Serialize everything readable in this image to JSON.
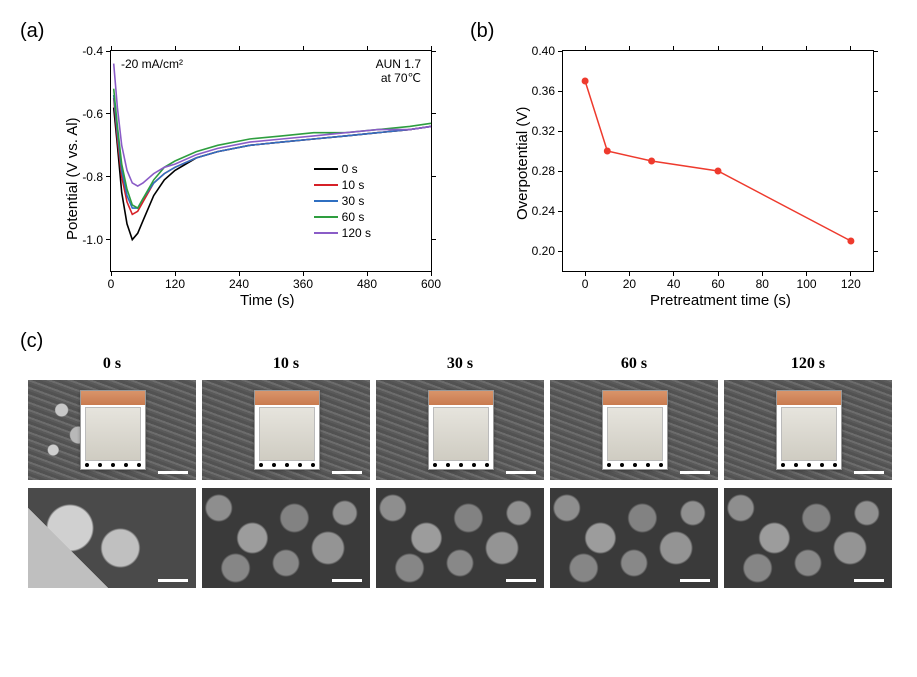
{
  "panel_a": {
    "label": "(a)",
    "type": "line",
    "xlabel": "Time (s)",
    "ylabel": "Potential (V vs. Al)",
    "xlim": [
      0,
      600
    ],
    "ylim": [
      -1.1,
      -0.4
    ],
    "xticks": [
      0,
      120,
      240,
      360,
      480,
      600
    ],
    "yticks": [
      -1.0,
      -0.8,
      -0.6,
      -0.4
    ],
    "annotations": {
      "current": "-20 mA/cm²",
      "cond1": "AUN 1.7",
      "cond2": "at 70℃"
    },
    "background_color": "#ffffff",
    "series": [
      {
        "name": "0 s",
        "color": "#000000",
        "points": [
          [
            5,
            -0.58
          ],
          [
            12,
            -0.7
          ],
          [
            20,
            -0.85
          ],
          [
            30,
            -0.95
          ],
          [
            40,
            -1.0
          ],
          [
            50,
            -0.98
          ],
          [
            60,
            -0.94
          ],
          [
            80,
            -0.86
          ],
          [
            100,
            -0.81
          ],
          [
            120,
            -0.78
          ],
          [
            160,
            -0.74
          ],
          [
            200,
            -0.72
          ],
          [
            260,
            -0.7
          ],
          [
            320,
            -0.69
          ],
          [
            380,
            -0.68
          ],
          [
            440,
            -0.67
          ],
          [
            500,
            -0.66
          ],
          [
            560,
            -0.65
          ],
          [
            600,
            -0.64
          ]
        ]
      },
      {
        "name": "10 s",
        "color": "#d62027",
        "points": [
          [
            5,
            -0.55
          ],
          [
            12,
            -0.68
          ],
          [
            20,
            -0.8
          ],
          [
            30,
            -0.88
          ],
          [
            40,
            -0.92
          ],
          [
            50,
            -0.91
          ],
          [
            60,
            -0.88
          ],
          [
            80,
            -0.82
          ],
          [
            100,
            -0.79
          ],
          [
            120,
            -0.77
          ],
          [
            160,
            -0.74
          ],
          [
            200,
            -0.72
          ],
          [
            260,
            -0.7
          ],
          [
            320,
            -0.69
          ],
          [
            380,
            -0.68
          ],
          [
            440,
            -0.67
          ],
          [
            500,
            -0.66
          ],
          [
            560,
            -0.65
          ],
          [
            600,
            -0.64
          ]
        ]
      },
      {
        "name": "30 s",
        "color": "#2f6fc1",
        "points": [
          [
            5,
            -0.54
          ],
          [
            12,
            -0.66
          ],
          [
            20,
            -0.78
          ],
          [
            30,
            -0.86
          ],
          [
            40,
            -0.9
          ],
          [
            50,
            -0.9
          ],
          [
            60,
            -0.87
          ],
          [
            80,
            -0.82
          ],
          [
            100,
            -0.79
          ],
          [
            120,
            -0.77
          ],
          [
            160,
            -0.74
          ],
          [
            200,
            -0.72
          ],
          [
            260,
            -0.7
          ],
          [
            320,
            -0.69
          ],
          [
            380,
            -0.68
          ],
          [
            440,
            -0.67
          ],
          [
            500,
            -0.66
          ],
          [
            560,
            -0.65
          ],
          [
            600,
            -0.64
          ]
        ]
      },
      {
        "name": "60 s",
        "color": "#2e9e3f",
        "points": [
          [
            5,
            -0.52
          ],
          [
            12,
            -0.64
          ],
          [
            20,
            -0.76
          ],
          [
            30,
            -0.84
          ],
          [
            40,
            -0.89
          ],
          [
            50,
            -0.9
          ],
          [
            60,
            -0.87
          ],
          [
            80,
            -0.81
          ],
          [
            100,
            -0.77
          ],
          [
            120,
            -0.75
          ],
          [
            160,
            -0.72
          ],
          [
            200,
            -0.7
          ],
          [
            260,
            -0.68
          ],
          [
            320,
            -0.67
          ],
          [
            380,
            -0.66
          ],
          [
            440,
            -0.66
          ],
          [
            500,
            -0.65
          ],
          [
            560,
            -0.64
          ],
          [
            600,
            -0.63
          ]
        ]
      },
      {
        "name": "120 s",
        "color": "#8a5cc7",
        "points": [
          [
            5,
            -0.44
          ],
          [
            12,
            -0.58
          ],
          [
            20,
            -0.7
          ],
          [
            30,
            -0.78
          ],
          [
            40,
            -0.82
          ],
          [
            50,
            -0.83
          ],
          [
            60,
            -0.82
          ],
          [
            80,
            -0.79
          ],
          [
            100,
            -0.77
          ],
          [
            120,
            -0.76
          ],
          [
            160,
            -0.73
          ],
          [
            200,
            -0.71
          ],
          [
            260,
            -0.69
          ],
          [
            320,
            -0.68
          ],
          [
            380,
            -0.67
          ],
          [
            440,
            -0.66
          ],
          [
            500,
            -0.65
          ],
          [
            560,
            -0.65
          ],
          [
            600,
            -0.64
          ]
        ]
      }
    ]
  },
  "panel_b": {
    "label": "(b)",
    "type": "line-scatter",
    "xlabel": "Pretreatment time (s)",
    "ylabel": "Overpotential (V)",
    "xlim": [
      -10,
      130
    ],
    "ylim": [
      0.18,
      0.4
    ],
    "xticks": [
      0,
      20,
      40,
      60,
      80,
      100,
      120
    ],
    "yticks": [
      0.2,
      0.24,
      0.28,
      0.32,
      0.36,
      0.4
    ],
    "marker_color": "#ee3a2d",
    "line_color": "#ee3a2d",
    "marker_style": "circle",
    "marker_size": 7,
    "line_width": 1.5,
    "points": [
      [
        0,
        0.37
      ],
      [
        10,
        0.3
      ],
      [
        30,
        0.29
      ],
      [
        60,
        0.28
      ],
      [
        120,
        0.21
      ]
    ]
  },
  "panel_c": {
    "label": "(c)",
    "type": "image-grid",
    "columns": [
      "0 s",
      "10 s",
      "30 s",
      "60 s",
      "120 s"
    ],
    "rows": 2,
    "inset_shows": "photo of Cu plate with Al coating",
    "scalebar_note": "white scale bars bottom-right",
    "description": "SEM images at two magnifications for each pretreatment time; top row low-mag with optical photo inset, bottom row high-mag"
  },
  "colors": {
    "axis": "#000000",
    "background": "#ffffff"
  },
  "fontsize": {
    "panel_label": 20,
    "axis_label": 15,
    "tick": 12,
    "legend": 12,
    "col_label": 16
  }
}
